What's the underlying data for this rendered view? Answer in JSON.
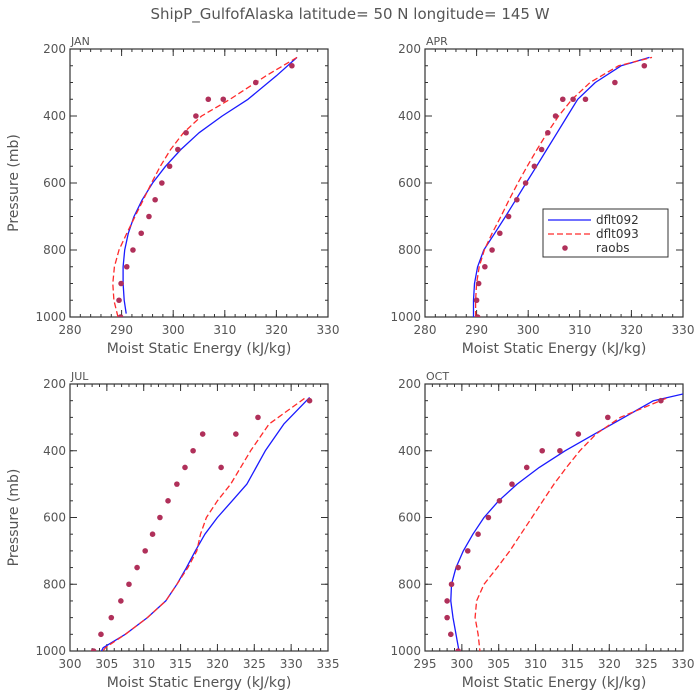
{
  "figure": {
    "title": "ShipP_GulfofAlaska   latitude= 50 N longitude= 145 W"
  },
  "legend": {
    "entries": [
      {
        "name": "dflt092",
        "style": "solid",
        "color": "#1a1aff"
      },
      {
        "name": "dflt093",
        "style": "dashed",
        "color": "#ff2a2a"
      },
      {
        "name": "raobs",
        "style": "markers",
        "color": "#b0305a"
      }
    ]
  },
  "chart_data": [
    {
      "type": "line",
      "label": "JAN",
      "xlabel": "Moist Static Energy (kJ/kg)",
      "ylabel": "Pressure (mb)",
      "xlim": [
        280,
        330
      ],
      "ylim": [
        1000,
        200
      ],
      "xticks": [
        280,
        290,
        300,
        310,
        320,
        330
      ],
      "yticks": [
        200,
        400,
        600,
        800,
        1000
      ],
      "series": [
        {
          "name": "dflt092",
          "style": "solid",
          "color": "#1a1aff",
          "x": [
            290.9,
            290.5,
            290.3,
            290.3,
            290.6,
            291.3,
            292.4,
            294.0,
            296.0,
            298.5,
            301.5,
            305.0,
            309.5,
            314.5,
            320.0,
            324.0
          ],
          "y": [
            990,
            950,
            900,
            850,
            800,
            750,
            700,
            650,
            600,
            550,
            500,
            450,
            400,
            350,
            280,
            225
          ]
        },
        {
          "name": "dflt093",
          "style": "dashed",
          "color": "#ff2a2a",
          "x": [
            289.3,
            288.5,
            288.3,
            288.6,
            289.5,
            291.0,
            292.6,
            294.2,
            295.8,
            297.5,
            299.5,
            302.0,
            305.5,
            311.0,
            318.0,
            324.0
          ],
          "y": [
            1000,
            950,
            900,
            850,
            800,
            750,
            700,
            650,
            600,
            550,
            500,
            450,
            400,
            350,
            280,
            225
          ]
        },
        {
          "name": "raobs",
          "style": "markers",
          "color": "#b0305a",
          "x": [
            289.8,
            289.5,
            289.9,
            291.0,
            292.2,
            293.8,
            295.3,
            296.5,
            297.8,
            299.3,
            300.9,
            302.5,
            304.4,
            306.8,
            309.7,
            316.0,
            323.0
          ],
          "y": [
            1000,
            950,
            900,
            850,
            800,
            750,
            700,
            650,
            600,
            550,
            500,
            450,
            400,
            350,
            350,
            300,
            250
          ]
        }
      ]
    },
    {
      "type": "line",
      "label": "APR",
      "xlabel": "Moist Static Energy (kJ/kg)",
      "ylabel": "",
      "xlim": [
        280,
        330
      ],
      "ylim": [
        1000,
        200
      ],
      "xticks": [
        280,
        290,
        300,
        310,
        320,
        330
      ],
      "yticks": [
        200,
        400,
        600,
        800,
        1000
      ],
      "legend": true,
      "series": [
        {
          "name": "dflt092",
          "style": "solid",
          "color": "#1a1aff",
          "x": [
            289.4,
            289.4,
            289.6,
            290.2,
            291.4,
            293.5,
            295.6,
            297.6,
            299.6,
            301.6,
            303.6,
            305.6,
            307.6,
            309.6,
            313.0,
            318.0,
            323.5
          ],
          "y": [
            1000,
            950,
            900,
            850,
            800,
            750,
            700,
            650,
            600,
            550,
            500,
            450,
            400,
            350,
            300,
            250,
            225
          ]
        },
        {
          "name": "dflt093",
          "style": "dashed",
          "color": "#ff2a2a",
          "x": [
            289.8,
            289.8,
            290.0,
            290.5,
            291.5,
            293.0,
            294.7,
            296.3,
            298.0,
            299.8,
            301.7,
            303.7,
            305.9,
            308.5,
            312.0,
            317.5,
            324.0
          ],
          "y": [
            1000,
            950,
            900,
            850,
            800,
            750,
            700,
            650,
            600,
            550,
            500,
            450,
            400,
            350,
            300,
            250,
            225
          ]
        },
        {
          "name": "raobs",
          "style": "markers",
          "color": "#b0305a",
          "x": [
            290.2,
            290.0,
            290.4,
            291.6,
            293.0,
            294.5,
            296.2,
            297.8,
            299.5,
            301.2,
            302.6,
            303.8,
            305.3,
            306.7,
            308.7,
            311.1,
            316.8,
            322.5
          ],
          "y": [
            1000,
            950,
            900,
            850,
            800,
            750,
            700,
            650,
            600,
            550,
            500,
            450,
            400,
            350,
            350,
            350,
            300,
            250
          ]
        }
      ]
    },
    {
      "type": "line",
      "label": "JUL",
      "xlabel": "Moist Static Energy (kJ/kg)",
      "ylabel": "Pressure (mb)",
      "xlim": [
        300,
        335
      ],
      "ylim": [
        1000,
        200
      ],
      "xticks": [
        300,
        305,
        310,
        315,
        320,
        325,
        330,
        335
      ],
      "yticks": [
        200,
        400,
        600,
        800,
        1000
      ],
      "series": [
        {
          "name": "dflt092",
          "style": "solid",
          "color": "#1a1aff",
          "x": [
            303.8,
            304.5,
            307.5,
            310.5,
            313.0,
            314.5,
            315.8,
            317.0,
            318.3,
            320.0,
            322.0,
            324.0,
            326.5,
            329.0,
            332.5
          ],
          "y": [
            1020,
            990,
            950,
            900,
            850,
            800,
            750,
            700,
            650,
            600,
            550,
            500,
            400,
            320,
            240
          ]
        },
        {
          "name": "dflt093",
          "style": "dashed",
          "color": "#ff2a2a",
          "x": [
            303.8,
            304.8,
            307.5,
            310.5,
            313.0,
            314.5,
            316.0,
            317.2,
            317.7,
            318.5,
            320.0,
            321.8,
            324.5,
            327.0,
            332.0
          ],
          "y": [
            1020,
            990,
            950,
            900,
            850,
            800,
            750,
            700,
            650,
            600,
            550,
            500,
            400,
            320,
            240
          ]
        },
        {
          "name": "raobs",
          "style": "markers",
          "color": "#b0305a",
          "x": [
            303.2,
            304.2,
            305.6,
            306.9,
            308.0,
            309.1,
            310.2,
            311.2,
            312.2,
            313.3,
            314.5,
            315.6,
            316.7,
            318.0,
            320.5,
            322.5,
            325.5,
            332.5
          ],
          "y": [
            1000,
            950,
            900,
            850,
            800,
            750,
            700,
            650,
            600,
            550,
            500,
            450,
            400,
            350,
            450,
            350,
            300,
            250
          ]
        }
      ]
    },
    {
      "type": "line",
      "label": "OCT",
      "xlabel": "Moist Static Energy (kJ/kg)",
      "ylabel": "",
      "xlim": [
        295,
        330
      ],
      "ylim": [
        1000,
        200
      ],
      "xticks": [
        295,
        300,
        305,
        310,
        315,
        320,
        325,
        330
      ],
      "yticks": [
        200,
        400,
        600,
        800,
        1000
      ],
      "series": [
        {
          "name": "dflt092",
          "style": "solid",
          "color": "#1a1aff",
          "x": [
            299.7,
            299.2,
            298.8,
            298.5,
            298.6,
            299.2,
            300.2,
            301.5,
            303.0,
            305.0,
            307.5,
            310.5,
            314.0,
            318.0,
            322.0,
            326.0,
            330.0
          ],
          "y": [
            1010,
            950,
            900,
            850,
            800,
            750,
            700,
            650,
            600,
            550,
            500,
            450,
            400,
            350,
            300,
            250,
            230
          ]
        },
        {
          "name": "dflt093",
          "style": "dashed",
          "color": "#ff2a2a",
          "x": [
            302.5,
            302.2,
            301.8,
            302.0,
            303.0,
            304.8,
            306.5,
            308.0,
            309.5,
            311.0,
            312.5,
            314.2,
            316.0,
            318.2,
            321.5,
            328.0
          ],
          "y": [
            1010,
            950,
            900,
            850,
            800,
            750,
            700,
            650,
            600,
            550,
            500,
            450,
            400,
            350,
            300,
            240
          ]
        },
        {
          "name": "raobs",
          "style": "markers",
          "color": "#b0305a",
          "x": [
            299.5,
            298.5,
            298.0,
            298.0,
            298.6,
            299.5,
            300.8,
            302.2,
            303.6,
            305.1,
            306.8,
            308.8,
            310.9,
            313.3,
            315.8,
            319.8,
            327.0
          ],
          "y": [
            1000,
            950,
            900,
            850,
            800,
            750,
            700,
            650,
            600,
            550,
            500,
            450,
            400,
            400,
            350,
            300,
            250
          ]
        }
      ]
    }
  ]
}
